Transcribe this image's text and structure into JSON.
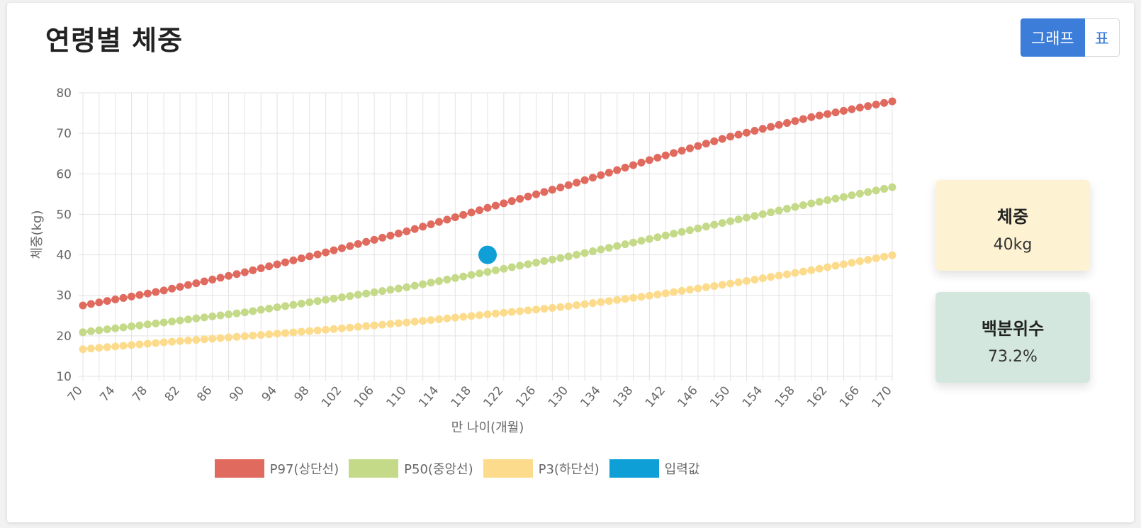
{
  "page": {
    "title": "연령별 체중"
  },
  "toggle": {
    "graph_label": "그래프",
    "table_label": "표"
  },
  "stats": [
    {
      "label": "체중",
      "value": "40kg"
    },
    {
      "label": "백분위수",
      "value": "73.2%"
    }
  ],
  "colors": {
    "p97": "#e06a5e",
    "p50": "#c4da88",
    "p3": "#fcdc8c",
    "input": "#0d9fd6",
    "accent": "#3b7dd8"
  },
  "chart_data": {
    "type": "line",
    "xlabel": "만 나이(개월)",
    "ylabel": "체중(kg)",
    "xlim": [
      70,
      170
    ],
    "ylim": [
      10,
      80
    ],
    "x_step": 1,
    "xticks": [
      70,
      74,
      78,
      82,
      86,
      90,
      94,
      98,
      102,
      106,
      110,
      114,
      118,
      122,
      126,
      130,
      134,
      138,
      142,
      146,
      150,
      154,
      158,
      162,
      166,
      170
    ],
    "yticks": [
      10,
      20,
      30,
      40,
      50,
      60,
      70,
      80
    ],
    "grid": true,
    "legend_position": "bottom",
    "series": [
      {
        "name": "P97(상단선)",
        "color": "#e06a5e",
        "anchors": [
          [
            70,
            27.5
          ],
          [
            80,
            31.2
          ],
          [
            90,
            35.7
          ],
          [
            100,
            40.6
          ],
          [
            110,
            45.8
          ],
          [
            120,
            51.6
          ],
          [
            130,
            57.2
          ],
          [
            140,
            63.4
          ],
          [
            150,
            69.2
          ],
          [
            160,
            74.0
          ],
          [
            170,
            77.9
          ]
        ]
      },
      {
        "name": "P50(중앙선)",
        "color": "#c4da88",
        "anchors": [
          [
            70,
            20.9
          ],
          [
            80,
            23.3
          ],
          [
            90,
            25.8
          ],
          [
            100,
            28.9
          ],
          [
            110,
            32.0
          ],
          [
            120,
            35.8
          ],
          [
            130,
            39.6
          ],
          [
            140,
            43.9
          ],
          [
            150,
            48.3
          ],
          [
            160,
            52.7
          ],
          [
            170,
            56.7
          ]
        ]
      },
      {
        "name": "P3(하단선)",
        "color": "#fcdc8c",
        "anchors": [
          [
            70,
            16.7
          ],
          [
            80,
            18.4
          ],
          [
            90,
            19.9
          ],
          [
            100,
            21.5
          ],
          [
            110,
            23.3
          ],
          [
            120,
            25.3
          ],
          [
            130,
            27.3
          ],
          [
            140,
            29.9
          ],
          [
            150,
            32.9
          ],
          [
            160,
            36.2
          ],
          [
            170,
            39.9
          ]
        ]
      }
    ],
    "input": {
      "name": "입력값",
      "x": 120,
      "y": 40,
      "color": "#0d9fd6"
    }
  }
}
